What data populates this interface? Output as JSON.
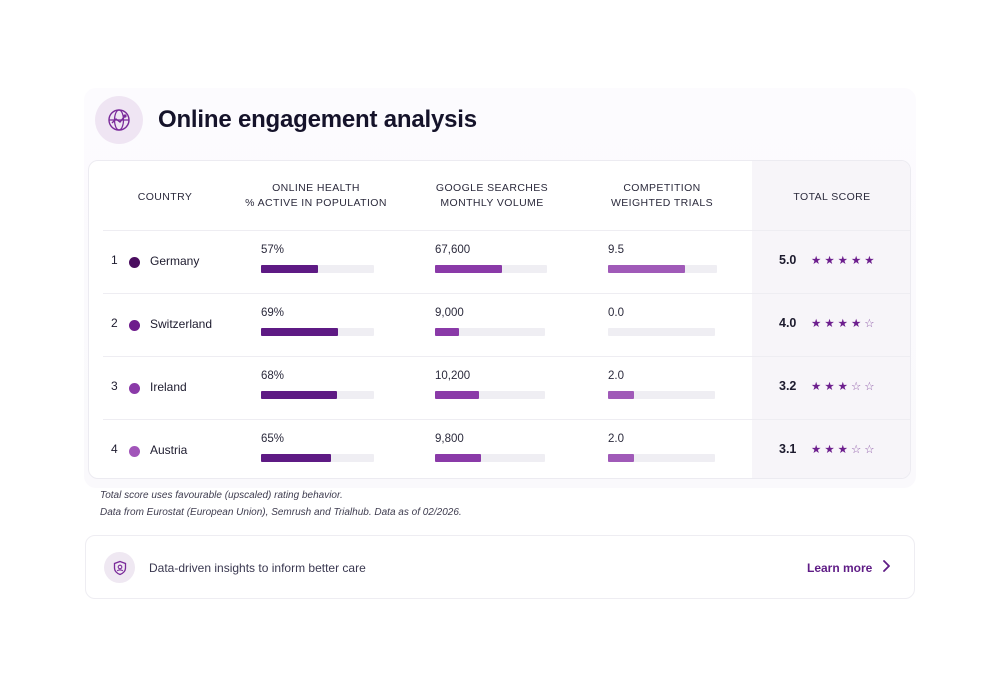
{
  "header": {
    "title": "Online engagement analysis",
    "icon": "global-network-icon"
  },
  "columns": {
    "country": "COUNTRY",
    "health_line1": "ONLINE HEALTH",
    "health_line2": "% ACTIVE IN POPULATION",
    "searches_line1": "GOOGLE SEARCHES",
    "searches_line2": "MONTHLY VOLUME",
    "competition_line1": "COMPETITION",
    "competition_line2": "WEIGHTED TRIALS",
    "total": "TOTAL SCORE"
  },
  "rows": [
    {
      "rank": "1",
      "country": "Germany",
      "dot_color": "#4a0d5f",
      "health": "57%",
      "health_fill": 0.5,
      "searches": "67,600",
      "searches_fill": 0.6,
      "competition": "9.5",
      "competition_fill": 0.71,
      "score": "5.0",
      "stars_full": 5,
      "stars_empty": 0
    },
    {
      "rank": "2",
      "country": "Switzerland",
      "dot_color": "#6e1c8c",
      "health": "69%",
      "health_fill": 0.68,
      "searches": "9,000",
      "searches_fill": 0.22,
      "competition": "0.0",
      "competition_fill": 0.0,
      "score": "4.0",
      "stars_full": 4,
      "stars_empty": 1
    },
    {
      "rank": "3",
      "country": "Ireland",
      "dot_color": "#8a3aa8",
      "health": "68%",
      "health_fill": 0.67,
      "searches": "10,200",
      "searches_fill": 0.4,
      "competition": "2.0",
      "competition_fill": 0.24,
      "score": "3.2",
      "stars_full": 3,
      "stars_empty": 2
    },
    {
      "rank": "4",
      "country": "Austria",
      "dot_color": "#a155b9",
      "health": "65%",
      "health_fill": 0.62,
      "searches": "9,800",
      "searches_fill": 0.42,
      "competition": "2.0",
      "competition_fill": 0.24,
      "score": "3.1",
      "stars_full": 3,
      "stars_empty": 2
    }
  ],
  "notes": {
    "line1": "Total score uses favourable (upscaled) rating behavior.",
    "line2": "Data from Eurostat (European Union), Semrush and Trialhub. Data as of 02/2026."
  },
  "banner": {
    "icon": "shield-icon",
    "text": "Data-driven insights to inform better care",
    "link": "Learn more"
  },
  "colors": {
    "health_bar": "#5e1a84",
    "searches_bar": "#8a3aa8",
    "competition_bar": "#a05ab8",
    "accent": "#5f1c86"
  }
}
